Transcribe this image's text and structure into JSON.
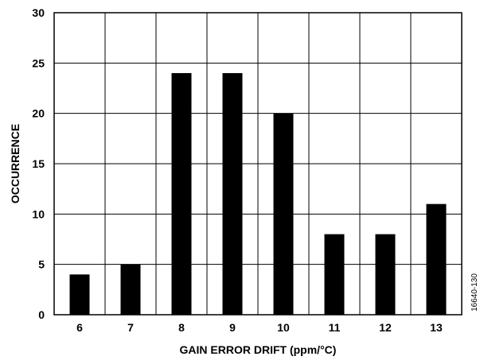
{
  "figure_id": "16640-130",
  "chart_data": {
    "type": "bar",
    "categories": [
      "6",
      "7",
      "8",
      "9",
      "10",
      "11",
      "12",
      "13"
    ],
    "values": [
      4,
      5,
      24,
      24,
      20,
      8,
      8,
      11
    ],
    "xlabel": "GAIN ERROR DRIFT (ppm/°C)",
    "ylabel": "OCCURRENCE",
    "ylim": [
      0,
      30
    ],
    "yticks": [
      "0",
      "5",
      "10",
      "15",
      "20",
      "25",
      "30"
    ],
    "grid": true,
    "bar_color": "#000000"
  }
}
